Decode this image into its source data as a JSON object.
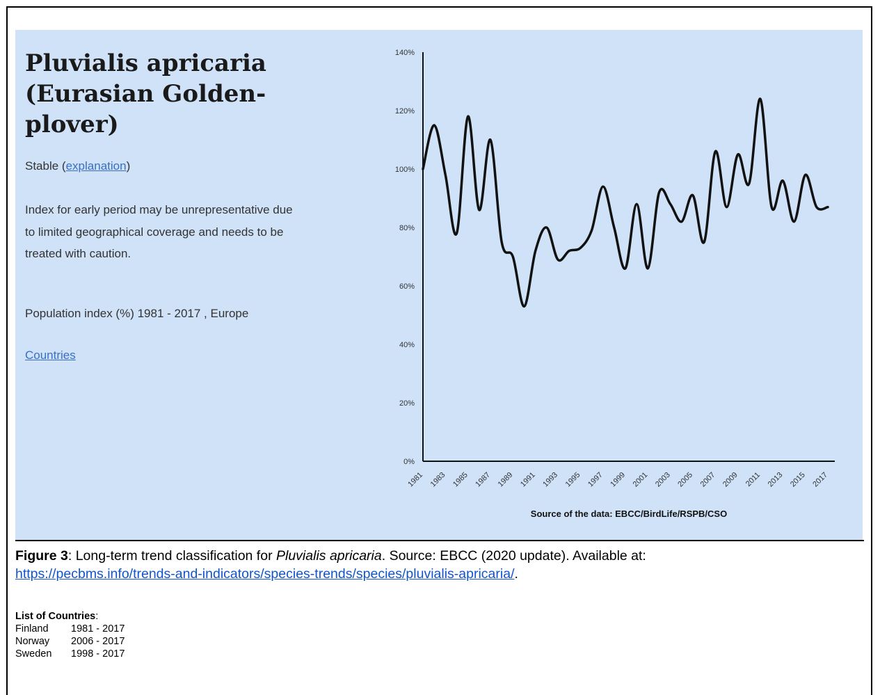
{
  "panel": {
    "title": "Pluvialis apricaria (Eurasian Golden-plover)",
    "status_prefix": "Stable (",
    "status_link": "explanation",
    "status_suffix": ")",
    "note": "Index for early period may be unrepresentative due to limited geographical coverage and needs to be treated with caution.",
    "population_index": "Population index (%) 1981 - 2017 , Europe",
    "countries_link": "Countries"
  },
  "chart_data": {
    "type": "line",
    "source": "Source of the data: EBCC/BirdLife/RSPB/CSO",
    "ylim": [
      0,
      140
    ],
    "y_ticks": [
      0,
      20,
      40,
      60,
      80,
      100,
      120,
      140
    ],
    "y_tick_labels": [
      "0%",
      "20%",
      "40%",
      "60%",
      "80%",
      "100%",
      "120%",
      "140%"
    ],
    "x_ticks": [
      1981,
      1983,
      1985,
      1987,
      1989,
      1991,
      1993,
      1995,
      1997,
      1999,
      2001,
      2003,
      2005,
      2007,
      2009,
      2011,
      2013,
      2015,
      2017
    ],
    "x": [
      1981,
      1982,
      1983,
      1984,
      1985,
      1986,
      1987,
      1988,
      1989,
      1990,
      1991,
      1992,
      1993,
      1994,
      1995,
      1996,
      1997,
      1998,
      1999,
      2000,
      2001,
      2002,
      2003,
      2004,
      2005,
      2006,
      2007,
      2008,
      2009,
      2010,
      2011,
      2012,
      2013,
      2014,
      2015,
      2016,
      2017
    ],
    "series": [
      {
        "values": [
          100,
          115,
          98,
          78,
          118,
          86,
          110,
          75,
          70,
          53,
          72,
          80,
          69,
          72,
          73,
          79,
          94,
          80,
          66,
          88,
          66,
          92,
          88,
          82,
          91,
          75,
          106,
          87,
          105,
          95,
          124,
          87,
          96,
          82,
          98,
          87,
          87
        ]
      }
    ],
    "grid": false,
    "line_color": "#111111"
  },
  "caption": {
    "figure_label": "Figure 3",
    "text_before": ": Long-term trend classification for ",
    "species_italic": "Pluvialis apricaria",
    "text_after": ". Source: EBCC (2020 update). Available at:",
    "url": "https://pecbms.info/trends-and-indicators/species-trends/species/pluvialis-apricaria/",
    "url_suffix": "."
  },
  "countries_list": {
    "heading": "List of Countries",
    "heading_suffix": ":",
    "rows": [
      {
        "name": "Finland",
        "years": "1981 - 2017"
      },
      {
        "name": "Norway",
        "years": "2006 - 2017"
      },
      {
        "name": "Sweden",
        "years": "1998 - 2017"
      }
    ]
  }
}
